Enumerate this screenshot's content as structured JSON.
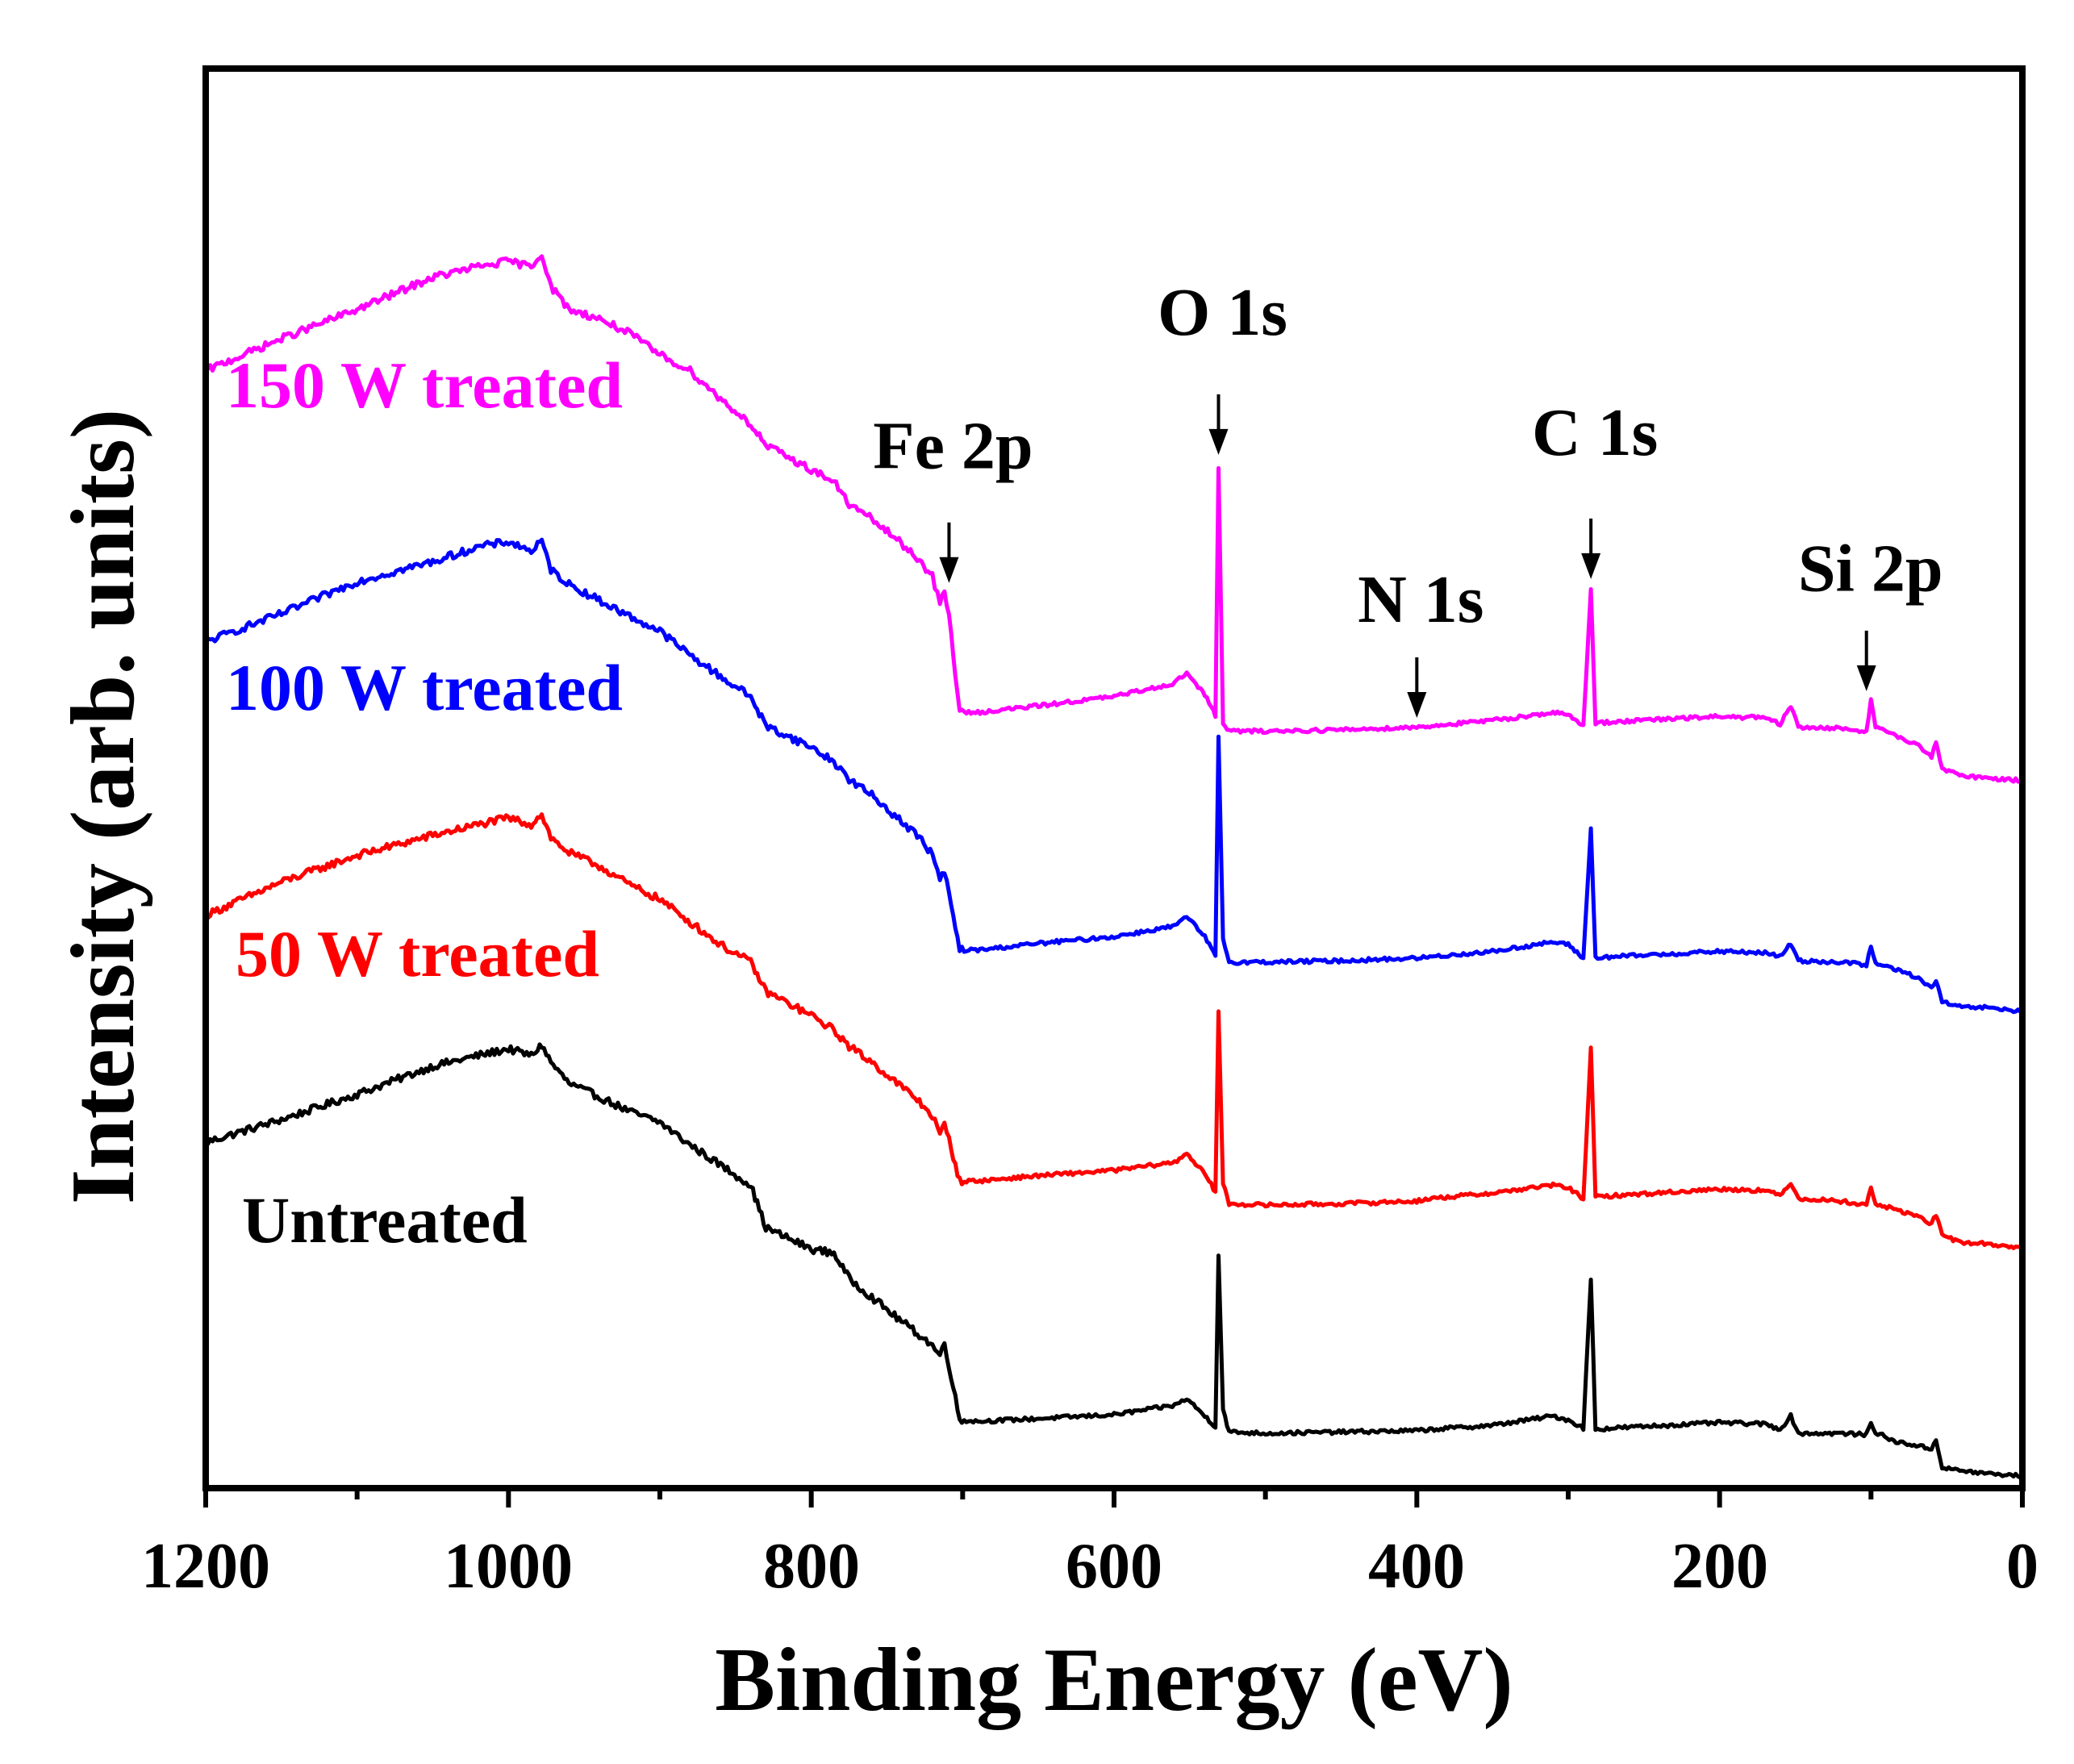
{
  "chart_data": {
    "type": "line",
    "title": "",
    "xlabel": "Binding Energy (eV)",
    "ylabel": "Intensity (arb. units)",
    "xlim": [
      1200,
      0
    ],
    "x_reversed": true,
    "ylim": [
      0,
      100
    ],
    "y_ticks_shown": false,
    "x_ticks": [
      1200,
      1000,
      800,
      600,
      400,
      200,
      0
    ],
    "x_tick_labels": [
      "1200",
      "1000",
      "800",
      "600",
      "400",
      "200",
      "0"
    ],
    "grid": false,
    "series": [
      {
        "name": "Untreated",
        "label": "Untreated",
        "color": "#000000",
        "points": [
          [
            1200,
            25
          ],
          [
            1150,
            26.7
          ],
          [
            1100,
            28.6
          ],
          [
            1050,
            30.7
          ],
          [
            1020,
            31.5
          ],
          [
            1000,
            32
          ],
          [
            985,
            31.5
          ],
          [
            978,
            32.3
          ],
          [
            972,
            31
          ],
          [
            960,
            29.4
          ],
          [
            940,
            28.4
          ],
          [
            920,
            27.3
          ],
          [
            900,
            26.5
          ],
          [
            880,
            24.8
          ],
          [
            860,
            23.3
          ],
          [
            840,
            21.8
          ],
          [
            830,
            18.6
          ],
          [
            800,
            17
          ],
          [
            785,
            16.7
          ],
          [
            775,
            14.8
          ],
          [
            760,
            13.4
          ],
          [
            745,
            12
          ],
          [
            730,
            10.7
          ],
          [
            720,
            9.8
          ],
          [
            715,
            9
          ],
          [
            712,
            10
          ],
          [
            709,
            8.3
          ],
          [
            702,
            4.2
          ],
          [
            690,
            4.1
          ],
          [
            650,
            4.3
          ],
          [
            600,
            4.6
          ],
          [
            560,
            5.3
          ],
          [
            552,
            5.8
          ],
          [
            540,
            4.5
          ],
          [
            533,
            3.7
          ],
          [
            531,
            16.6
          ],
          [
            528,
            5
          ],
          [
            524,
            3.3
          ],
          [
            500,
            3.2
          ],
          [
            450,
            3.3
          ],
          [
            400,
            3.4
          ],
          [
            390,
            3.5
          ],
          [
            350,
            3.8
          ],
          [
            310,
            4.5
          ],
          [
            300,
            4.2
          ],
          [
            290,
            3.6
          ],
          [
            285,
            14.8
          ],
          [
            282,
            3.5
          ],
          [
            270,
            3.6
          ],
          [
            200,
            4
          ],
          [
            170,
            3.9
          ],
          [
            160,
            3.5
          ],
          [
            153,
            4.5
          ],
          [
            148,
            3.2
          ],
          [
            120,
            3.2
          ],
          [
            103,
            3.1
          ],
          [
            100,
            4
          ],
          [
            97,
            3.3
          ],
          [
            85,
            2.6
          ],
          [
            70,
            2.3
          ],
          [
            60,
            2
          ],
          [
            57,
            2.8
          ],
          [
            53,
            0.6
          ],
          [
            40,
            0.4
          ],
          [
            25,
            0.2
          ],
          [
            0,
            0
          ]
        ]
      },
      {
        "name": "50 W treated",
        "label": "50 W treated",
        "color": "#ff0000",
        "points": [
          [
            1200,
            42
          ],
          [
            1150,
            44.5
          ],
          [
            1100,
            46.5
          ],
          [
            1050,
            48
          ],
          [
            1020,
            48.8
          ],
          [
            1000,
            49.3
          ],
          [
            985,
            48.8
          ],
          [
            978,
            49.6
          ],
          [
            972,
            47.8
          ],
          [
            960,
            46.7
          ],
          [
            940,
            45.7
          ],
          [
            920,
            44.3
          ],
          [
            900,
            43.2
          ],
          [
            880,
            41.5
          ],
          [
            860,
            39.8
          ],
          [
            840,
            38.5
          ],
          [
            830,
            36.3
          ],
          [
            800,
            34.5
          ],
          [
            785,
            33.4
          ],
          [
            775,
            32.2
          ],
          [
            760,
            31
          ],
          [
            745,
            29.6
          ],
          [
            730,
            28.2
          ],
          [
            720,
            27
          ],
          [
            715,
            25.6
          ],
          [
            712,
            26.3
          ],
          [
            709,
            25.2
          ],
          [
            702,
            22.1
          ],
          [
            690,
            22.1
          ],
          [
            650,
            22.5
          ],
          [
            600,
            22.9
          ],
          [
            560,
            23.5
          ],
          [
            552,
            24.2
          ],
          [
            540,
            22.6
          ],
          [
            533,
            21.3
          ],
          [
            531,
            34.8
          ],
          [
            528,
            21.9
          ],
          [
            524,
            20.4
          ],
          [
            500,
            20.3
          ],
          [
            450,
            20.4
          ],
          [
            400,
            20.6
          ],
          [
            390,
            20.8
          ],
          [
            350,
            21.2
          ],
          [
            310,
            21.8
          ],
          [
            300,
            21.6
          ],
          [
            290,
            20.8
          ],
          [
            285,
            32
          ],
          [
            282,
            20.9
          ],
          [
            270,
            21
          ],
          [
            200,
            21.5
          ],
          [
            170,
            21.4
          ],
          [
            160,
            21
          ],
          [
            153,
            22
          ],
          [
            148,
            20.8
          ],
          [
            120,
            20.6
          ],
          [
            103,
            20.3
          ],
          [
            100,
            21.6
          ],
          [
            97,
            20.4
          ],
          [
            85,
            20
          ],
          [
            70,
            19.5
          ],
          [
            60,
            18.9
          ],
          [
            57,
            19.6
          ],
          [
            53,
            18
          ],
          [
            40,
            17.5
          ],
          [
            25,
            17.4
          ],
          [
            0,
            17.1
          ]
        ]
      },
      {
        "name": "100 W treated",
        "label": "100 W treated",
        "color": "#0000ff",
        "points": [
          [
            1200,
            62.5
          ],
          [
            1150,
            64.6
          ],
          [
            1100,
            67
          ],
          [
            1050,
            68.5
          ],
          [
            1020,
            69.6
          ],
          [
            1000,
            70
          ],
          [
            985,
            69.3
          ],
          [
            978,
            70
          ],
          [
            972,
            67.9
          ],
          [
            960,
            66.8
          ],
          [
            940,
            65.6
          ],
          [
            920,
            64.4
          ],
          [
            900,
            63.3
          ],
          [
            880,
            61.5
          ],
          [
            860,
            59.9
          ],
          [
            840,
            58.4
          ],
          [
            830,
            56.2
          ],
          [
            800,
            54.6
          ],
          [
            785,
            53.5
          ],
          [
            775,
            52.2
          ],
          [
            760,
            51
          ],
          [
            745,
            49.5
          ],
          [
            730,
            48
          ],
          [
            720,
            46.6
          ],
          [
            715,
            44.6
          ],
          [
            712,
            45.3
          ],
          [
            709,
            43.6
          ],
          [
            702,
            39.4
          ],
          [
            690,
            39.4
          ],
          [
            650,
            39.9
          ],
          [
            600,
            40.4
          ],
          [
            560,
            41.2
          ],
          [
            552,
            41.9
          ],
          [
            540,
            40.4
          ],
          [
            533,
            38.9
          ],
          [
            531,
            55.3
          ],
          [
            528,
            40.3
          ],
          [
            524,
            38.5
          ],
          [
            500,
            38.5
          ],
          [
            450,
            38.6
          ],
          [
            400,
            38.8
          ],
          [
            390,
            38.9
          ],
          [
            350,
            39.3
          ],
          [
            310,
            40
          ],
          [
            300,
            39.8
          ],
          [
            290,
            38.8
          ],
          [
            285,
            48.5
          ],
          [
            282,
            38.8
          ],
          [
            270,
            38.9
          ],
          [
            200,
            39.3
          ],
          [
            170,
            39.2
          ],
          [
            160,
            38.9
          ],
          [
            153,
            39.9
          ],
          [
            148,
            38.6
          ],
          [
            120,
            38.5
          ],
          [
            103,
            38.3
          ],
          [
            100,
            39.6
          ],
          [
            97,
            38.4
          ],
          [
            85,
            38
          ],
          [
            70,
            37.4
          ],
          [
            60,
            36.5
          ],
          [
            57,
            37.2
          ],
          [
            53,
            35.5
          ],
          [
            40,
            35.1
          ],
          [
            25,
            35.1
          ],
          [
            0,
            34.8
          ]
        ]
      },
      {
        "name": "150 W treated",
        "label": "150 W treated",
        "color": "#ff00ff",
        "points": [
          [
            1200,
            82.8
          ],
          [
            1150,
            85.2
          ],
          [
            1100,
            87.4
          ],
          [
            1050,
            89.8
          ],
          [
            1020,
            90.6
          ],
          [
            1000,
            91
          ],
          [
            985,
            90.6
          ],
          [
            978,
            91.6
          ],
          [
            972,
            89.1
          ],
          [
            960,
            87.4
          ],
          [
            940,
            86.7
          ],
          [
            920,
            85.6
          ],
          [
            900,
            84
          ],
          [
            880,
            82.8
          ],
          [
            860,
            80.7
          ],
          [
            840,
            78.8
          ],
          [
            830,
            77.2
          ],
          [
            800,
            75.4
          ],
          [
            785,
            74.5
          ],
          [
            775,
            72.8
          ],
          [
            760,
            71.7
          ],
          [
            745,
            70.3
          ],
          [
            730,
            68.8
          ],
          [
            720,
            67.4
          ],
          [
            715,
            65.3
          ],
          [
            712,
            66.2
          ],
          [
            709,
            64.5
          ],
          [
            702,
            57.2
          ],
          [
            690,
            57.2
          ],
          [
            650,
            57.7
          ],
          [
            600,
            58.4
          ],
          [
            560,
            59.4
          ],
          [
            552,
            60.2
          ],
          [
            540,
            58.5
          ],
          [
            533,
            57
          ],
          [
            531,
            75.6
          ],
          [
            528,
            56.4
          ],
          [
            524,
            55.8
          ],
          [
            500,
            55.8
          ],
          [
            450,
            55.9
          ],
          [
            400,
            56.1
          ],
          [
            390,
            56.2
          ],
          [
            350,
            56.6
          ],
          [
            310,
            57.2
          ],
          [
            300,
            57
          ],
          [
            290,
            56.2
          ],
          [
            285,
            66.5
          ],
          [
            282,
            56.4
          ],
          [
            270,
            56.5
          ],
          [
            200,
            56.9
          ],
          [
            170,
            56.8
          ],
          [
            160,
            56.3
          ],
          [
            153,
            57.7
          ],
          [
            148,
            56.1
          ],
          [
            120,
            56
          ],
          [
            103,
            55.8
          ],
          [
            100,
            58.1
          ],
          [
            97,
            56.2
          ],
          [
            85,
            55.5
          ],
          [
            70,
            54.8
          ],
          [
            60,
            53.9
          ],
          [
            57,
            55.1
          ],
          [
            53,
            52.9
          ],
          [
            40,
            52.5
          ],
          [
            25,
            52.3
          ],
          [
            0,
            52.1
          ]
        ]
      }
    ],
    "annotations": [
      {
        "text": "O 1s",
        "x": 531,
        "arrow_y": 76.5,
        "label_y": 85.5
      },
      {
        "text": "Fe 2p",
        "x": 709,
        "arrow_y": 66.9,
        "label_y": 75.5
      },
      {
        "text": "N 1s",
        "x": 400,
        "arrow_y": 56.8,
        "label_y": 64
      },
      {
        "text": "C 1s",
        "x": 285,
        "arrow_y": 67.2,
        "label_y": 76.5
      },
      {
        "text": "Si 2p",
        "x": 103,
        "arrow_y": 58.8,
        "label_y": 66.3
      }
    ]
  }
}
